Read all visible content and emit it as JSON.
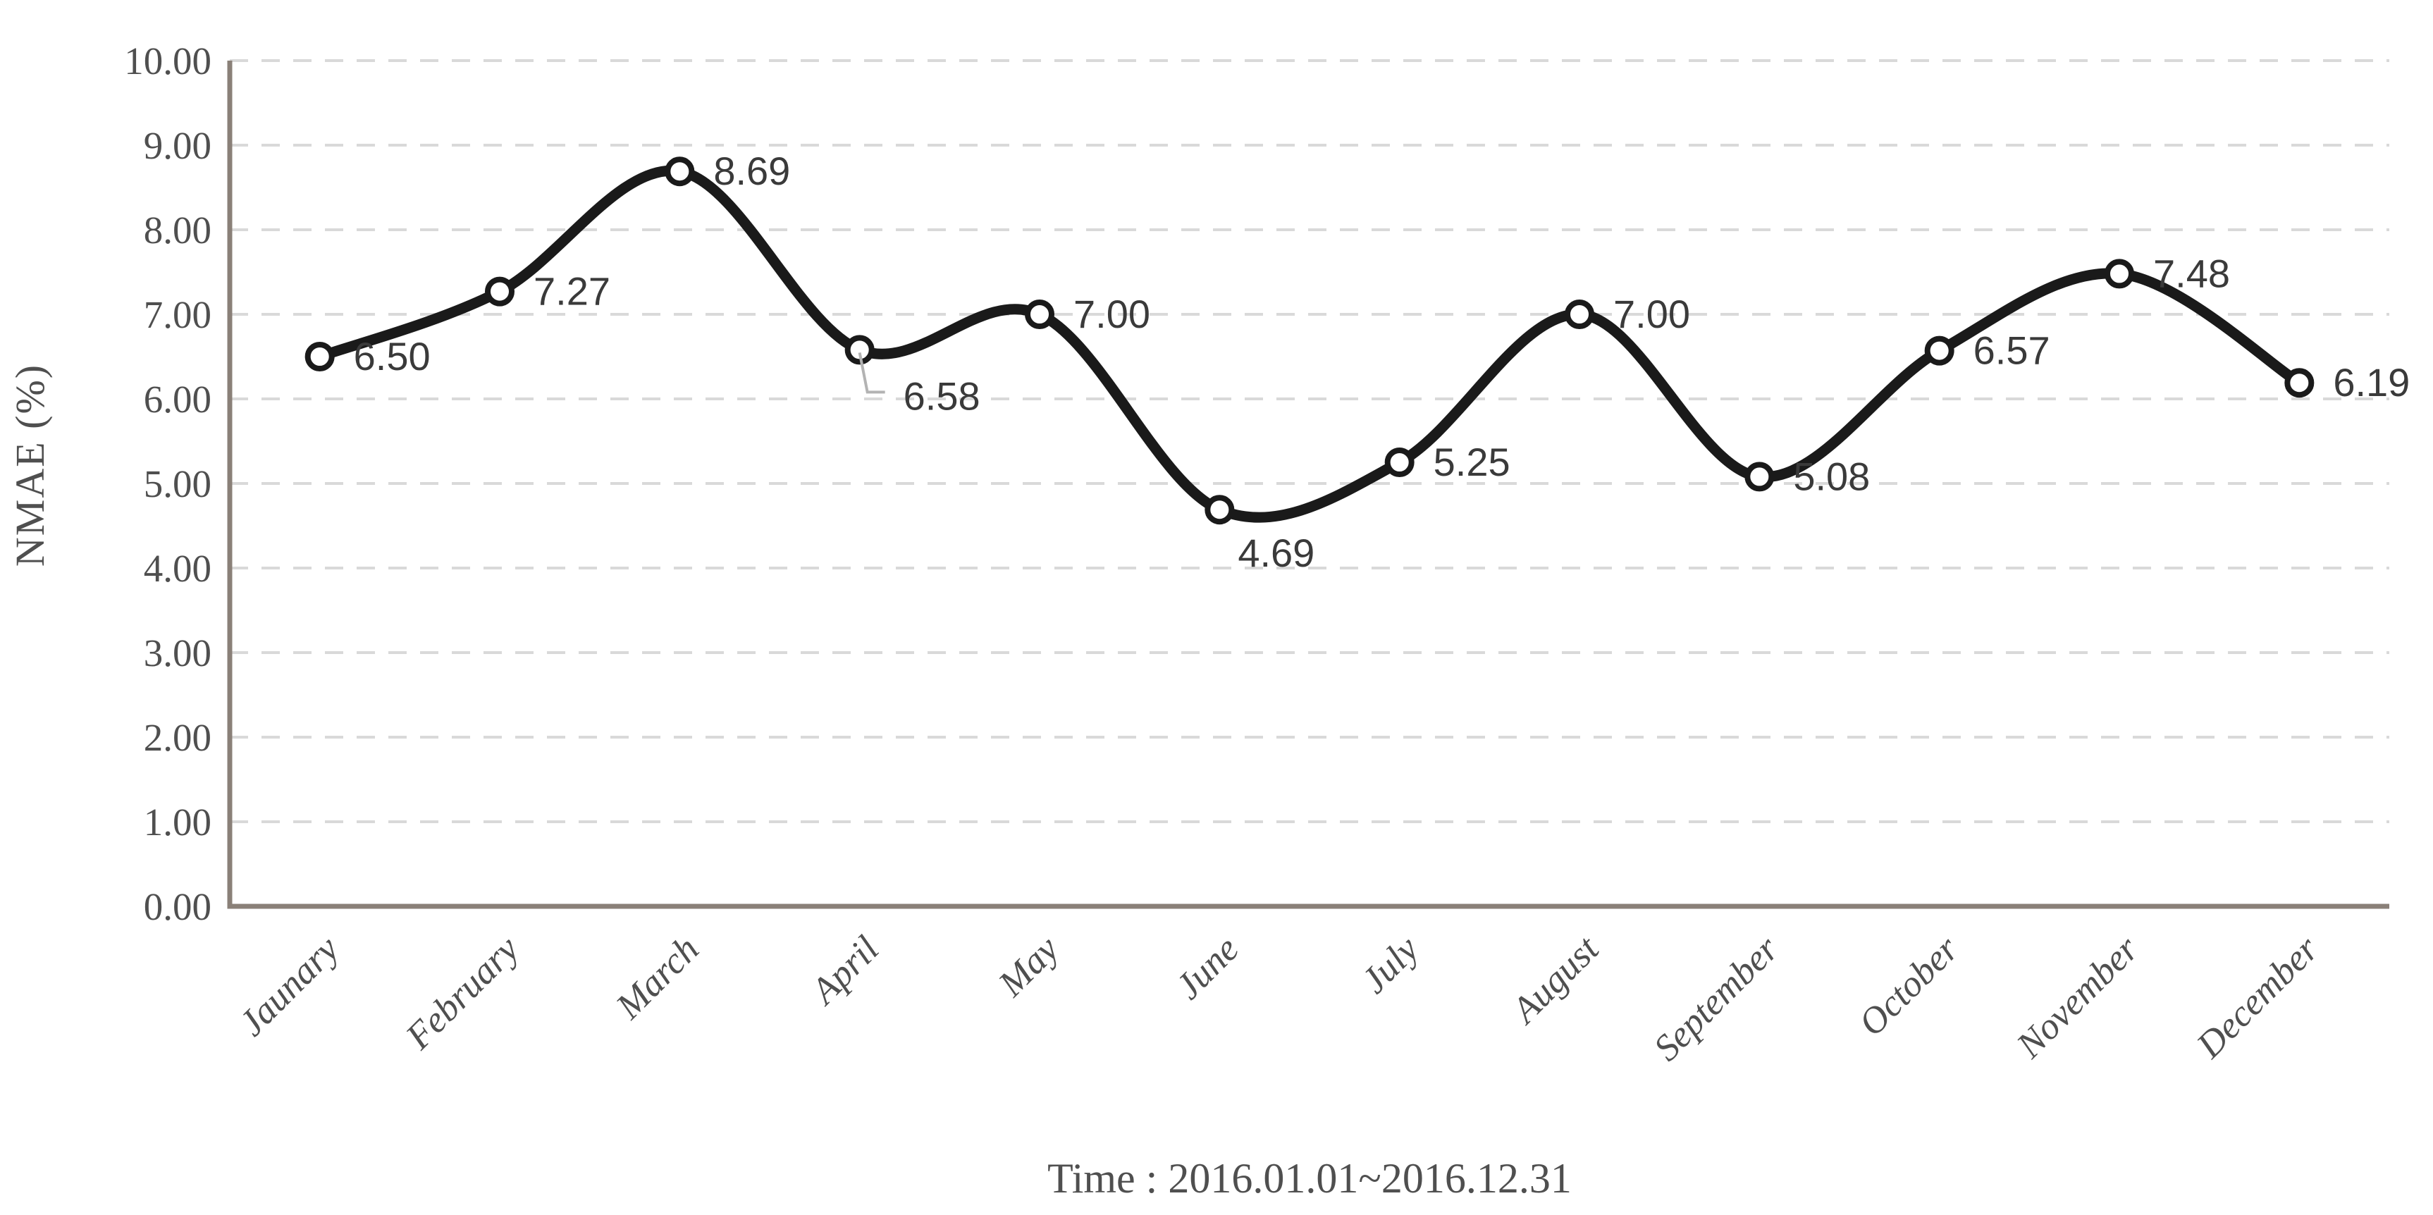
{
  "chart_data": {
    "type": "line",
    "title": "",
    "xlabel": "Time : 2016.01.01~2016.12.31",
    "ylabel": "NMAE (%)",
    "categories": [
      "Jaunary",
      "February",
      "March",
      "April",
      "May",
      "June",
      "July",
      "August",
      "September",
      "October",
      "November",
      "December"
    ],
    "series": [
      {
        "name": "NMAE",
        "values": [
          6.5,
          7.27,
          8.69,
          6.58,
          7.0,
          4.69,
          5.25,
          7.0,
          5.08,
          6.57,
          7.48,
          6.19
        ],
        "data_labels": [
          "6.50",
          "7.27",
          "8.69",
          "6.58",
          "7.00",
          "4.69",
          "5.25",
          "7.00",
          "5.08",
          "6.57",
          "7.48",
          "6.19"
        ],
        "label_positions": [
          "right",
          "right",
          "right",
          "below-leader",
          "right",
          "below",
          "right",
          "right",
          "right",
          "right",
          "right",
          "right"
        ]
      }
    ],
    "ylim": [
      0,
      10
    ],
    "ytick_step": 1,
    "ytick_labels": [
      "0.00",
      "1.00",
      "2.00",
      "3.00",
      "4.00",
      "5.00",
      "6.00",
      "7.00",
      "8.00",
      "9.00",
      "10.00"
    ],
    "grid": "horizontal-dashed",
    "legend": "none",
    "line_smoothed": true,
    "marker_style": "circle-white-black-outline",
    "colors": {
      "line": "#1a1a1a",
      "marker_fill": "#ffffff",
      "marker_stroke": "#1a1a1a",
      "grid": "#d9d9d9",
      "axis": "#8a8078",
      "tick_text": "#4f4f4f",
      "month_text": "#4f4f4f",
      "title_text": "#4f4f4f",
      "data_label_text": "#3a3a3a",
      "leader": "#b3b3b3"
    }
  }
}
